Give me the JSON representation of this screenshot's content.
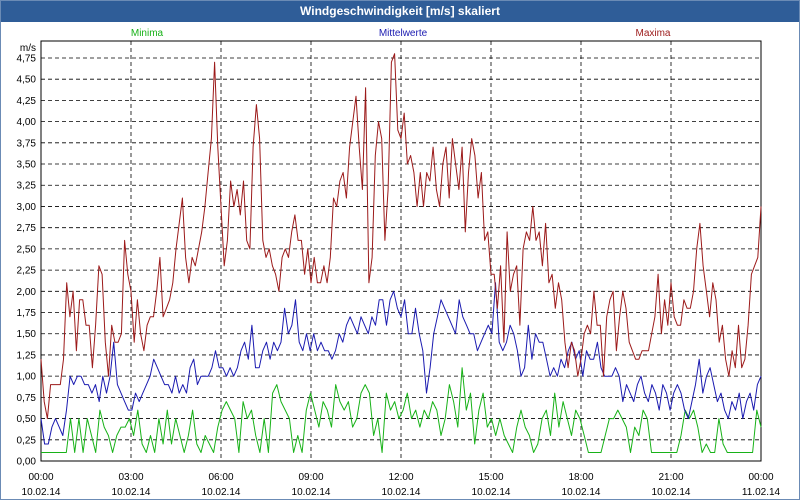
{
  "window": {
    "title": "Windgeschwindigkeit [m/s] skaliert"
  },
  "colors": {
    "minima": "#18b218",
    "mittelwerte": "#1a1ab0",
    "maxima": "#9c1a1a",
    "grid": "#000000",
    "title_bg": "#2f5d98"
  },
  "chart_data": {
    "type": "line",
    "title": "Windgeschwindigkeit [m/s] skaliert",
    "ylabel": "m/s",
    "xlabel": "",
    "ylim": [
      0,
      4.95
    ],
    "xlim": [
      0,
      24
    ],
    "grid": true,
    "legend_position": "top",
    "yticks": [
      "0,00",
      "0,25",
      "0,50",
      "0,75",
      "1,00",
      "1,25",
      "1,50",
      "1,75",
      "2,00",
      "2,25",
      "2,50",
      "2,75",
      "3,00",
      "3,25",
      "3,50",
      "3,75",
      "4,00",
      "4,25",
      "4,50",
      "4,75"
    ],
    "xticks": [
      {
        "time": "00:00",
        "date": "10.02.14"
      },
      {
        "time": "03:00",
        "date": "10.02.14"
      },
      {
        "time": "06:00",
        "date": "10.02.14"
      },
      {
        "time": "09:00",
        "date": "10.02.14"
      },
      {
        "time": "12:00",
        "date": "10.02.14"
      },
      {
        "time": "15:00",
        "date": "10.02.14"
      },
      {
        "time": "18:00",
        "date": "10.02.14"
      },
      {
        "time": "21:00",
        "date": "10.02.14"
      },
      {
        "time": "00:00",
        "date": "11.02.14"
      }
    ],
    "series": [
      {
        "name": "Minima",
        "values": [
          0.1,
          0.1,
          0.1,
          0.1,
          0.1,
          0.1,
          0.1,
          0.5,
          0.1,
          0.5,
          0.1,
          0.5,
          0.3,
          0.1,
          0.6,
          0.4,
          0.3,
          0.1,
          0.3,
          0.4,
          0.4,
          0.5,
          0.3,
          0.6,
          0.2,
          0.1,
          0.3,
          0.1,
          0.5,
          0.2,
          0.6,
          0.2,
          0.5,
          0.3,
          0.1,
          0.3,
          0.6,
          0.2,
          0.1,
          0.3,
          0.2,
          0.1,
          0.4,
          0.6,
          0.7,
          0.6,
          0.5,
          0.1,
          0.7,
          0.5,
          0.6,
          0.3,
          0.1,
          0.5,
          0.1,
          0.8,
          0.9,
          0.7,
          0.6,
          0.5,
          0.1,
          0.3,
          0.1,
          0.6,
          0.8,
          0.6,
          0.4,
          0.7,
          0.6,
          0.4,
          0.9,
          0.7,
          0.6,
          0.7,
          0.4,
          0.5,
          0.8,
          0.9,
          0.8,
          0.3,
          0.5,
          0.1,
          0.8,
          0.6,
          0.7,
          0.5,
          0.6,
          0.8,
          0.5,
          0.6,
          0.4,
          0.6,
          0.5,
          0.7,
          0.6,
          0.3,
          0.5,
          0.9,
          0.7,
          0.4,
          1.1,
          0.6,
          0.8,
          0.2,
          0.6,
          0.8,
          0.4,
          0.5,
          0.3,
          0.5,
          0.3,
          0.2,
          0.1,
          0.4,
          0.6,
          0.4,
          0.3,
          0.1,
          0.2,
          0.5,
          0.6,
          0.3,
          0.8,
          0.4,
          0.7,
          0.5,
          0.3,
          0.6,
          0.5,
          0.3,
          0.1,
          0.1,
          0.1,
          0.1,
          0.3,
          0.5,
          0.5,
          0.6,
          0.5,
          0.4,
          0.1,
          0.4,
          0.3,
          0.6,
          0.5,
          0.1,
          0.1,
          0.1,
          0.1,
          0.1,
          0.1,
          0.1,
          0.3,
          0.6,
          0.5,
          0.6,
          0.4,
          0.1,
          0.2,
          0.1,
          0.1,
          0.5,
          0.2,
          0.1,
          0.1,
          0.1,
          0.1,
          0.1,
          0.1,
          0.1,
          0.6,
          0.4
        ]
      },
      {
        "name": "Mittelwerte",
        "values": [
          0.5,
          0.2,
          0.2,
          0.4,
          0.5,
          0.4,
          0.3,
          0.6,
          1.0,
          0.9,
          1.0,
          1.0,
          0.9,
          0.9,
          0.8,
          0.9,
          0.7,
          1.0,
          0.8,
          1.0,
          1.4,
          0.9,
          0.8,
          0.7,
          0.6,
          0.6,
          0.8,
          0.7,
          0.8,
          0.9,
          1.0,
          1.2,
          1.1,
          1.0,
          0.9,
          0.9,
          0.8,
          1.0,
          0.8,
          0.9,
          0.8,
          1.1,
          1.2,
          0.9,
          1.0,
          1.0,
          1.0,
          1.1,
          1.3,
          1.1,
          1.1,
          1.0,
          1.1,
          1.0,
          1.1,
          1.3,
          1.4,
          1.2,
          1.6,
          1.1,
          1.1,
          1.3,
          1.4,
          1.2,
          1.4,
          1.3,
          1.4,
          1.8,
          1.5,
          1.6,
          1.9,
          1.4,
          1.3,
          1.5,
          1.3,
          1.5,
          1.3,
          1.4,
          1.3,
          1.3,
          1.2,
          1.3,
          1.5,
          1.4,
          1.6,
          1.7,
          1.6,
          1.5,
          1.7,
          1.6,
          1.5,
          1.7,
          1.6,
          1.9,
          1.9,
          1.6,
          1.9,
          2.0,
          1.8,
          1.7,
          1.9,
          1.5,
          1.5,
          1.8,
          1.5,
          1.3,
          0.8,
          1.1,
          1.5,
          1.7,
          1.9,
          1.8,
          1.7,
          1.6,
          1.5,
          1.9,
          1.7,
          1.6,
          1.5,
          1.5,
          1.3,
          1.4,
          1.5,
          1.6,
          1.5,
          2.1,
          1.4,
          1.3,
          1.4,
          1.6,
          1.5,
          1.3,
          1.0,
          1.1,
          1.6,
          1.2,
          1.5,
          1.4,
          1.4,
          1.2,
          1.0,
          1.1,
          1.0,
          1.2,
          1.1,
          1.3,
          1.4,
          1.2,
          1.3,
          1.0,
          1.3,
          1.2,
          1.2,
          1.4,
          1.1,
          1.0,
          1.0,
          1.0,
          1.1,
          1.0,
          0.7,
          0.9,
          0.8,
          0.7,
          0.9,
          1.0,
          0.8,
          0.7,
          0.9,
          0.8,
          0.6,
          0.9,
          0.8,
          0.6,
          0.8,
          0.9,
          0.8,
          0.6,
          0.5,
          0.7,
          0.9,
          1.2,
          0.8,
          1.0,
          1.1,
          0.9,
          0.7,
          0.8,
          0.6,
          0.5,
          0.7,
          0.6,
          0.8,
          0.5,
          0.7,
          0.8,
          0.6,
          0.9,
          1.0
        ]
      },
      {
        "name": "Maxima",
        "values": [
          1.2,
          0.7,
          0.5,
          0.9,
          0.9,
          0.9,
          0.9,
          1.2,
          2.1,
          1.7,
          2.0,
          1.3,
          1.9,
          1.9,
          1.6,
          1.6,
          1.1,
          1.6,
          2.3,
          2.2,
          1.4,
          1.0,
          1.6,
          1.4,
          1.4,
          1.5,
          2.6,
          2.2,
          2.0,
          1.4,
          1.9,
          1.5,
          1.3,
          1.6,
          1.7,
          1.7,
          2.0,
          2.4,
          1.7,
          1.8,
          1.9,
          2.1,
          2.5,
          2.8,
          3.1,
          2.4,
          2.1,
          2.4,
          2.3,
          2.5,
          2.7,
          3.0,
          3.4,
          3.8,
          4.7,
          3.7,
          3.0,
          2.3,
          2.6,
          3.3,
          3.0,
          3.2,
          2.9,
          3.3,
          2.6,
          2.5,
          3.7,
          4.2,
          3.8,
          2.6,
          2.4,
          2.5,
          2.3,
          2.2,
          2.0,
          2.4,
          2.5,
          2.4,
          2.7,
          2.9,
          2.6,
          2.6,
          2.2,
          2.5,
          2.1,
          2.4,
          2.1,
          2.1,
          2.3,
          2.1,
          2.4,
          3.1,
          3.0,
          3.3,
          3.4,
          3.1,
          3.7,
          4.0,
          4.3,
          3.7,
          3.2,
          4.4,
          2.1,
          2.4,
          3.6,
          4.0,
          3.8,
          2.6,
          3.2,
          4.7,
          4.8,
          3.9,
          3.8,
          4.1,
          3.5,
          3.6,
          3.4,
          3.0,
          3.4,
          3.0,
          3.4,
          3.3,
          3.7,
          3.2,
          3.0,
          3.5,
          3.7,
          3.1,
          3.8,
          3.5,
          3.2,
          3.7,
          2.7,
          3.4,
          3.8,
          3.6,
          3.1,
          3.4,
          2.6,
          2.7,
          2.2,
          2.2,
          1.8,
          2.3,
          1.4,
          2.7,
          2.0,
          2.2,
          2.3,
          1.6,
          2.5,
          2.7,
          2.6,
          3.0,
          2.6,
          2.7,
          2.3,
          2.8,
          2.1,
          2.2,
          1.8,
          2.1,
          1.9,
          1.4,
          1.1,
          1.4,
          1.3,
          1.0,
          1.2,
          1.5,
          1.6,
          1.5,
          2.0,
          1.6,
          1.6,
          1.0,
          1.7,
          1.9,
          2.0,
          1.3,
          1.7,
          2.0,
          1.8,
          1.4,
          1.3,
          1.2,
          1.2,
          1.3,
          1.3,
          1.3,
          1.5,
          1.7,
          2.2,
          1.5,
          1.9,
          1.6,
          2.1,
          1.7,
          1.6,
          1.6,
          1.9,
          1.8,
          1.8,
          2.0,
          2.5,
          2.8,
          2.3,
          2.0,
          1.7,
          2.1,
          1.9,
          1.4,
          1.6,
          1.2,
          1.0,
          1.3,
          1.1,
          1.6,
          1.1,
          1.2,
          1.6,
          2.2,
          2.3,
          2.4,
          3.0
        ]
      }
    ]
  }
}
